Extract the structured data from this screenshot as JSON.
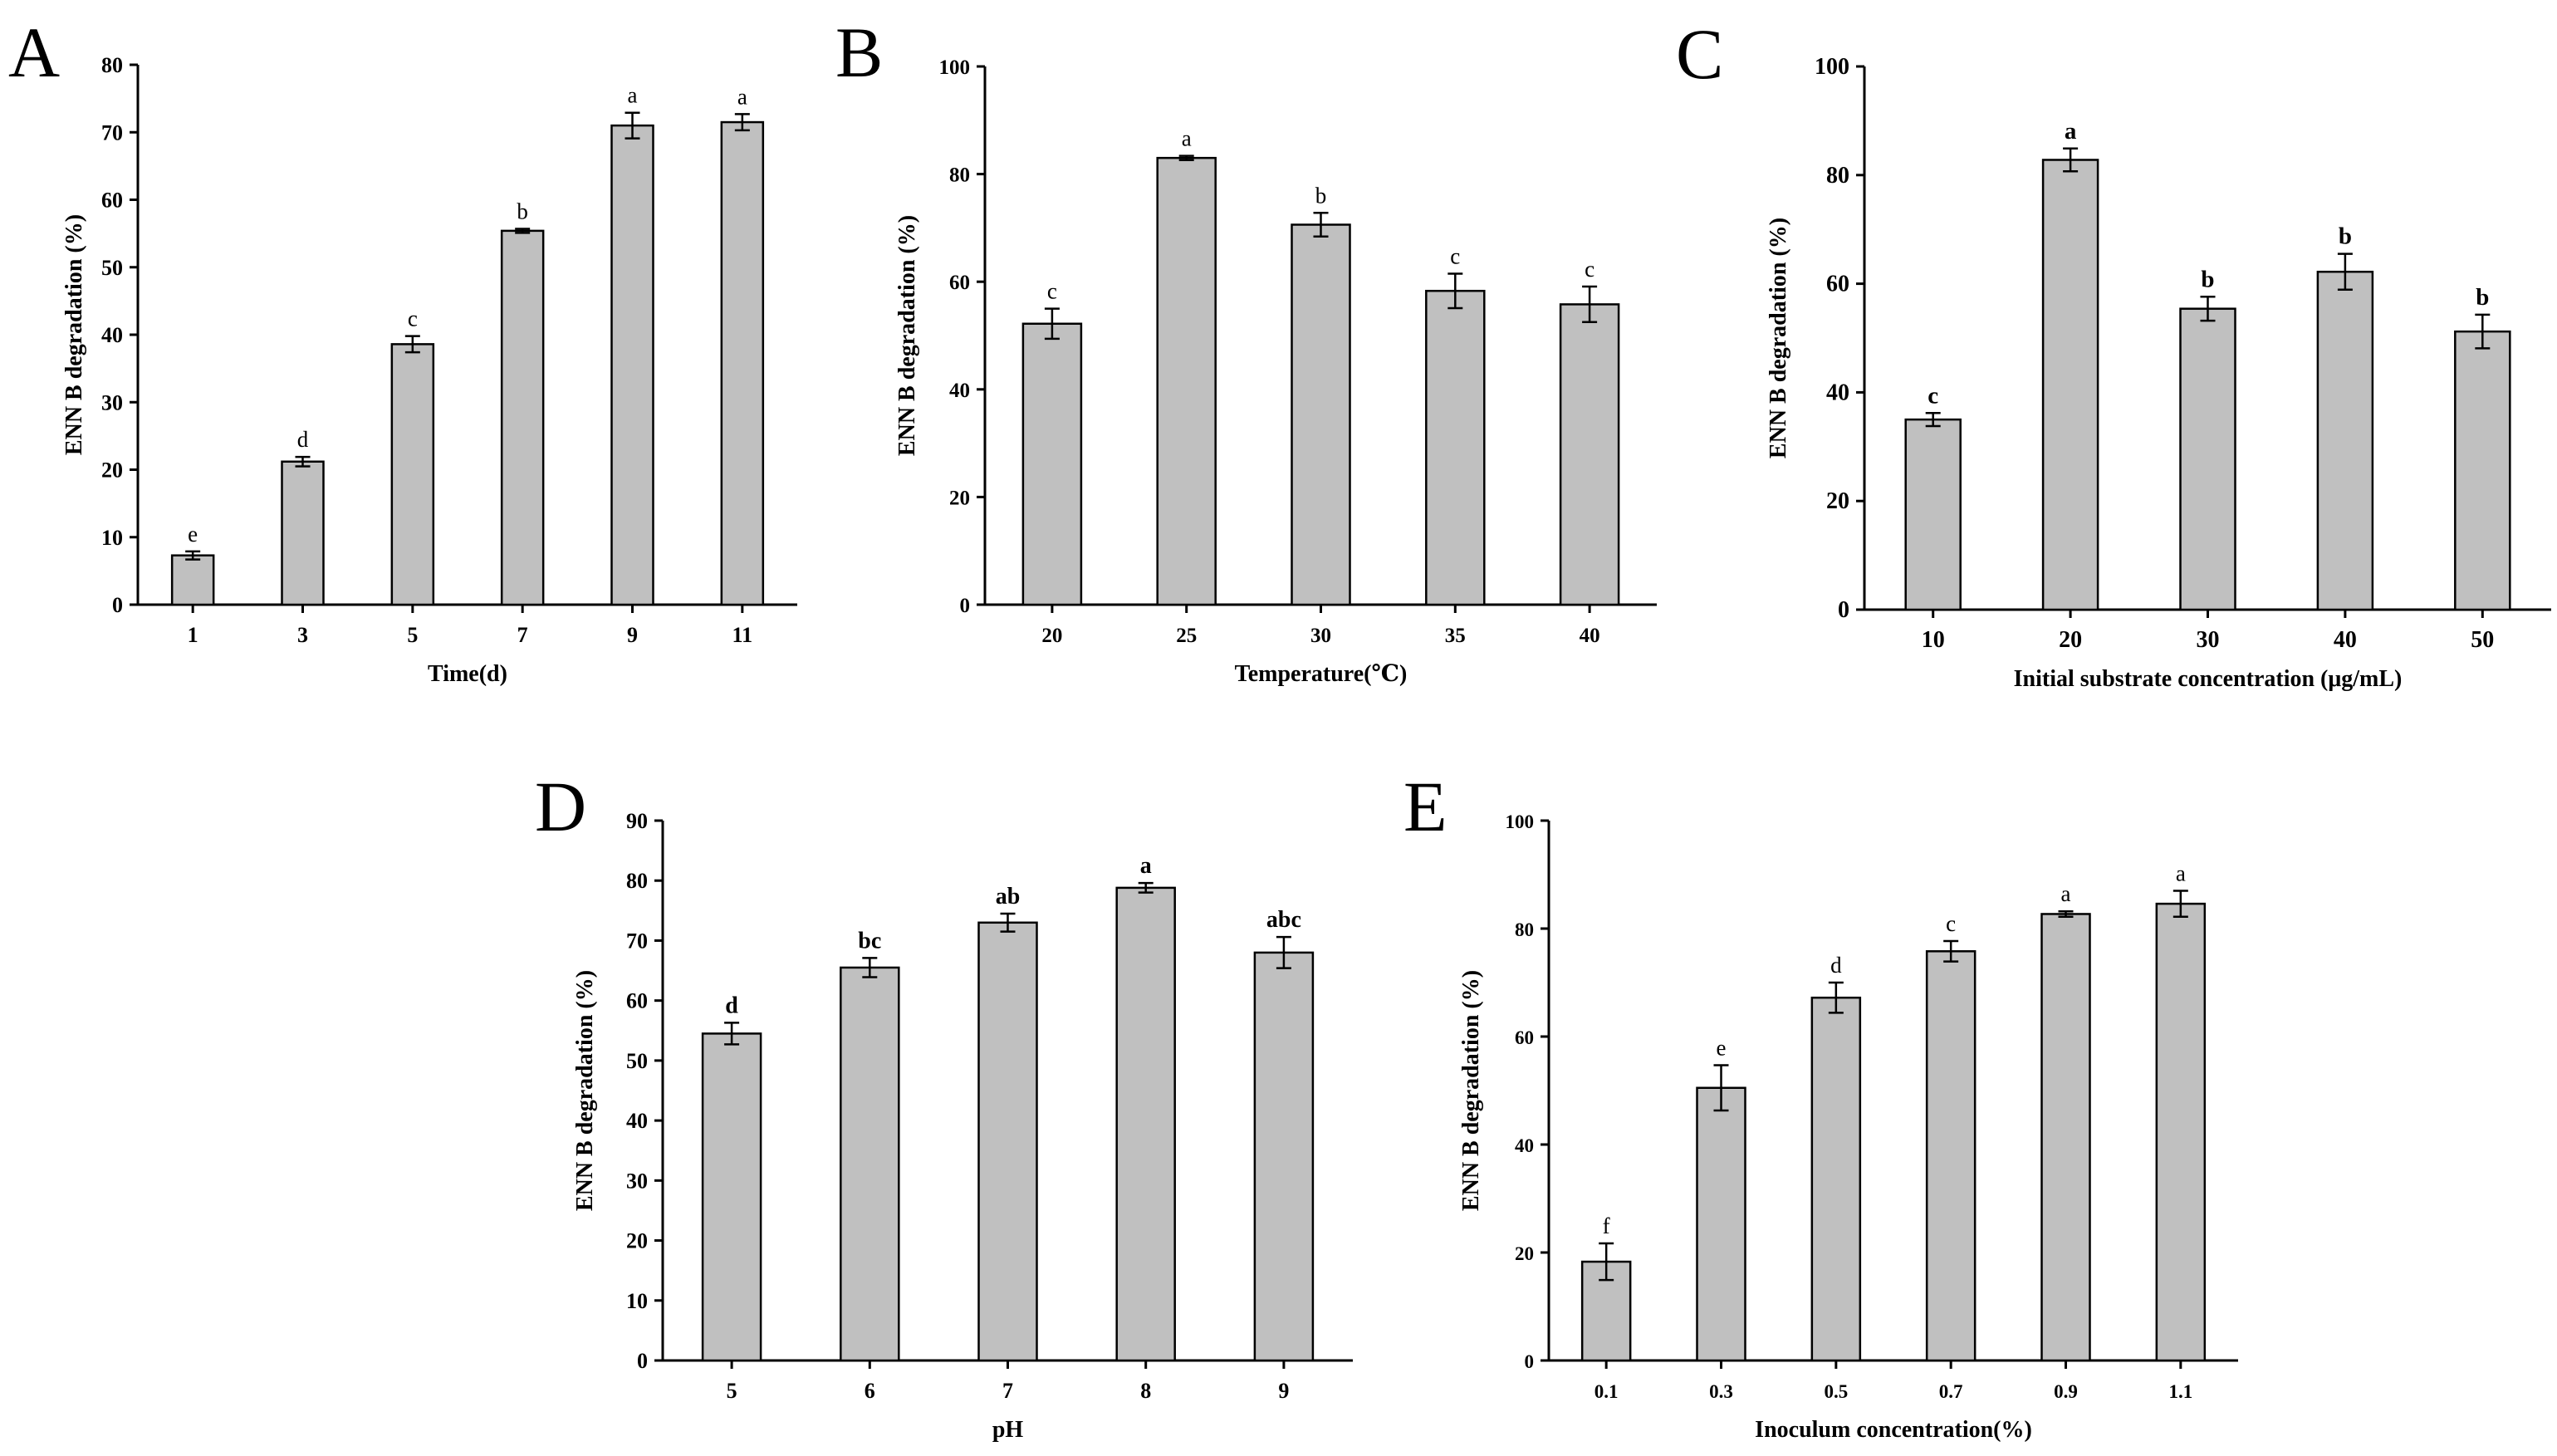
{
  "colors": {
    "bar_fill": "#c0c0c0",
    "bar_stroke": "#000000",
    "axis": "#000000"
  },
  "chart_data": [
    {
      "panel": "A",
      "type": "bar",
      "categories": [
        "1",
        "3",
        "5",
        "7",
        "9",
        "11"
      ],
      "values": [
        7.3,
        21.2,
        38.6,
        55.4,
        71.0,
        71.5
      ],
      "errors": [
        0.6,
        0.7,
        1.2,
        0.3,
        1.9,
        1.2
      ],
      "significance": [
        "e",
        "d",
        "c",
        "b",
        "a",
        "a"
      ],
      "xlabel": "Time(d)",
      "ylabel": "ENN B degradation (%)",
      "ylim": [
        0,
        80
      ],
      "yticks": [
        0,
        10,
        20,
        30,
        40,
        50,
        60,
        70,
        80
      ],
      "grid": false,
      "legend": "none"
    },
    {
      "panel": "B",
      "type": "bar",
      "categories": [
        "20",
        "25",
        "30",
        "35",
        "40"
      ],
      "values": [
        52.2,
        83.0,
        70.6,
        58.3,
        55.8
      ],
      "errors": [
        2.8,
        0.4,
        2.2,
        3.2,
        3.3
      ],
      "significance": [
        "c",
        "a",
        "b",
        "c",
        "c"
      ],
      "xlabel": "Temperature(℃)",
      "ylabel": "ENN B degradation (%)",
      "ylim": [
        0,
        100
      ],
      "yticks": [
        0,
        20,
        40,
        60,
        80,
        100
      ],
      "grid": false,
      "legend": "none"
    },
    {
      "panel": "C",
      "type": "bar",
      "categories": [
        "10",
        "20",
        "30",
        "40",
        "50"
      ],
      "values": [
        35.0,
        82.8,
        55.4,
        62.2,
        51.2
      ],
      "errors": [
        1.2,
        2.1,
        2.2,
        3.3,
        3.1
      ],
      "significance": [
        "c",
        "a",
        "b",
        "b",
        "b"
      ],
      "xlabel": "Initial substrate concentration (μg/mL)",
      "ylabel": "ENN B degradation (%)",
      "ylim": [
        0,
        100
      ],
      "yticks": [
        0,
        20,
        40,
        60,
        80,
        100
      ],
      "grid": false,
      "legend": "none"
    },
    {
      "panel": "D",
      "type": "bar",
      "categories": [
        "5",
        "6",
        "7",
        "8",
        "9"
      ],
      "values": [
        54.5,
        65.5,
        73.0,
        78.8,
        68.0
      ],
      "errors": [
        1.8,
        1.6,
        1.5,
        0.8,
        2.6
      ],
      "significance": [
        "d",
        "bc",
        "ab",
        "a",
        "abc"
      ],
      "xlabel": "pH",
      "ylabel": "ENN B degradation (%)",
      "ylim": [
        0,
        90
      ],
      "yticks": [
        0,
        10,
        20,
        30,
        40,
        50,
        60,
        70,
        80,
        90
      ],
      "grid": false,
      "legend": "none"
    },
    {
      "panel": "E",
      "type": "bar",
      "categories": [
        "0.1",
        "0.3",
        "0.5",
        "0.7",
        "0.9",
        "1.1"
      ],
      "values": [
        18.3,
        50.5,
        67.2,
        75.8,
        82.7,
        84.6
      ],
      "errors": [
        3.4,
        4.2,
        2.8,
        1.9,
        0.5,
        2.4
      ],
      "significance": [
        "f",
        "e",
        "d",
        "c",
        "a",
        "a"
      ],
      "xlabel": "Inoculum concentration(%)",
      "ylabel": "ENN B degradation (%)",
      "ylim": [
        0,
        100
      ],
      "yticks": [
        0,
        20,
        40,
        60,
        80,
        100
      ],
      "grid": false,
      "legend": "none"
    }
  ]
}
